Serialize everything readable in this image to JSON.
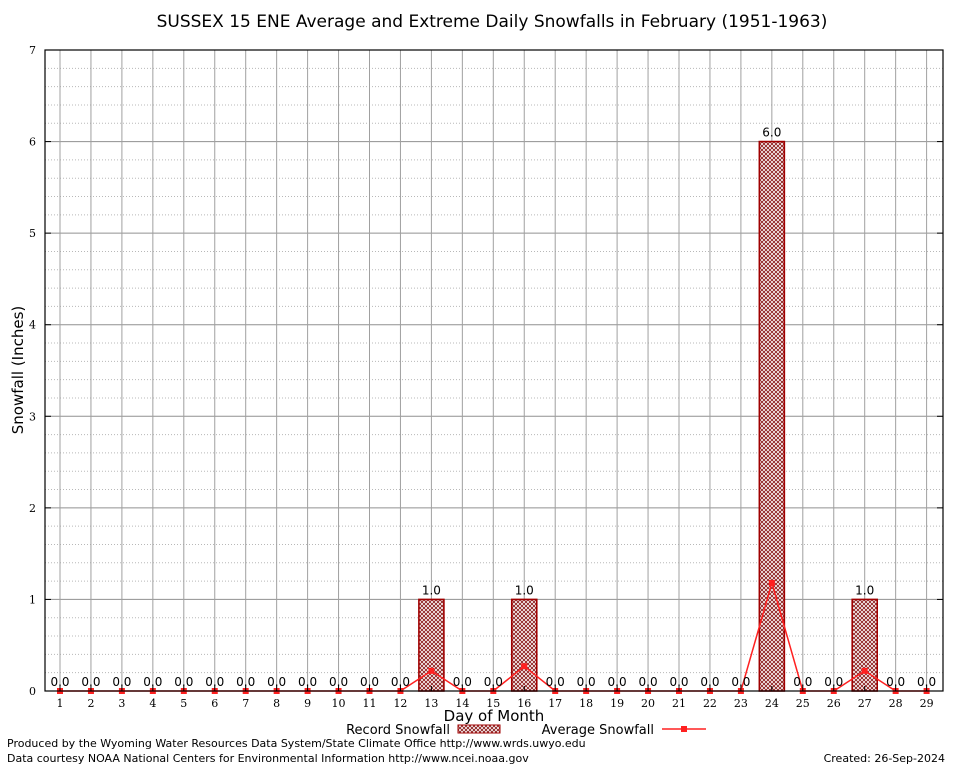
{
  "chart_data": {
    "type": "bar",
    "title": "SUSSEX 15 ENE Average and Extreme Daily Snowfalls in February (1951-1963)",
    "xlabel": "Day of Month",
    "ylabel": "Snowfall (Inches)",
    "ylim": [
      0,
      7
    ],
    "yticks": [
      "0",
      "1",
      "2",
      "3",
      "4",
      "5",
      "6",
      "7"
    ],
    "grid": true,
    "categories": [
      "1",
      "2",
      "3",
      "4",
      "5",
      "6",
      "7",
      "8",
      "9",
      "10",
      "11",
      "12",
      "13",
      "14",
      "15",
      "16",
      "17",
      "18",
      "19",
      "20",
      "21",
      "22",
      "23",
      "24",
      "25",
      "26",
      "27",
      "28",
      "29"
    ],
    "series": [
      {
        "name": "Record Snowfall",
        "kind": "bar",
        "color": "#a00000",
        "values": [
          0,
          0,
          0,
          0,
          0,
          0,
          0,
          0,
          0,
          0,
          0,
          0,
          1.0,
          0,
          0,
          1.0,
          0,
          0,
          0,
          0,
          0,
          0,
          0,
          6.0,
          0,
          0,
          1.0,
          0,
          0
        ],
        "labels": [
          "0.0",
          "0.0",
          "0.0",
          "0.0",
          "0.0",
          "0.0",
          "0.0",
          "0.0",
          "0.0",
          "0.0",
          "0.0",
          "0.0",
          "1.0",
          "0.0",
          "0.0",
          "1.0",
          "0.0",
          "0.0",
          "0.0",
          "0.0",
          "0.0",
          "0.0",
          "0.0",
          "6.0",
          "0.0",
          "0.0",
          "1.0",
          "0.0",
          "0.0"
        ]
      },
      {
        "name": "Average Snowfall",
        "kind": "line",
        "color": "#ff2020",
        "values": [
          0,
          0,
          0,
          0,
          0,
          0,
          0,
          0,
          0,
          0,
          0,
          0,
          0.22,
          0,
          0,
          0.27,
          0,
          0,
          0,
          0,
          0,
          0,
          0,
          1.18,
          0,
          0,
          0.22,
          0,
          0
        ]
      }
    ],
    "legend_position": "bottom"
  },
  "footer": {
    "produced_by": "Produced by the Wyoming Water Resources Data System/State Climate Office http://www.wrds.uwyo.edu",
    "data_courtesy": "Data courtesy NOAA National Centers for Environmental Information http://www.ncei.noaa.gov",
    "created": "Created:  26-Sep-2024"
  }
}
